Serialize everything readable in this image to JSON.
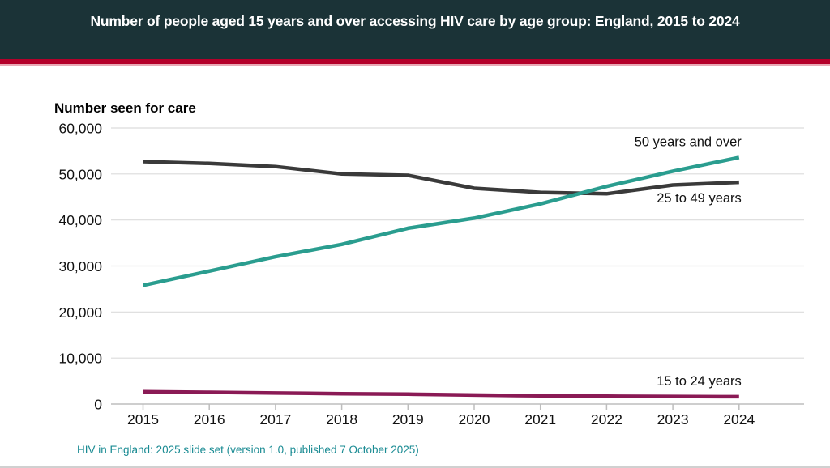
{
  "header": {
    "title": "Number of people aged 15 years and over accessing HIV care by age group: England, 2015 to 2024"
  },
  "footer": {
    "source": "HIV in England: 2025 slide set (version 1.0, published 7 October 2025)"
  },
  "colors": {
    "header_bg": "#1b3337",
    "accent_red": "#b4002a",
    "source_text": "#1a8b93"
  },
  "chart_data": {
    "type": "line",
    "title": "Number of people aged 15 years and over accessing HIV care by age group: England, 2015 to 2024",
    "xlabel": "",
    "ylabel": "Number seen for care",
    "x": [
      2015,
      2016,
      2017,
      2018,
      2019,
      2020,
      2021,
      2022,
      2023,
      2024
    ],
    "x_tick_labels": [
      "2015",
      "2016",
      "2017",
      "2018",
      "2019",
      "2020",
      "2021",
      "2022",
      "2023",
      "2024"
    ],
    "ylim": [
      0,
      60000
    ],
    "y_ticks": [
      0,
      10000,
      20000,
      30000,
      40000,
      50000,
      60000
    ],
    "y_tick_labels": [
      "0",
      "10,000",
      "20,000",
      "30,000",
      "40,000",
      "50,000",
      "60,000"
    ],
    "grid": "horizontal",
    "legend": "direct labels at line ends (right)",
    "series": [
      {
        "name": "50 years and over",
        "color": "#2a9d8f",
        "values": [
          25800,
          28900,
          32000,
          34700,
          38200,
          40400,
          43500,
          47300,
          50600,
          53600
        ]
      },
      {
        "name": "25 to 49 years",
        "color": "#3a3a3a",
        "values": [
          52700,
          52300,
          51600,
          50000,
          49700,
          46900,
          46000,
          45700,
          47600,
          48200
        ]
      },
      {
        "name": "15 to 24 years",
        "color": "#8a1a55",
        "values": [
          2700,
          2550,
          2400,
          2250,
          2150,
          1950,
          1800,
          1700,
          1650,
          1600
        ]
      }
    ]
  }
}
